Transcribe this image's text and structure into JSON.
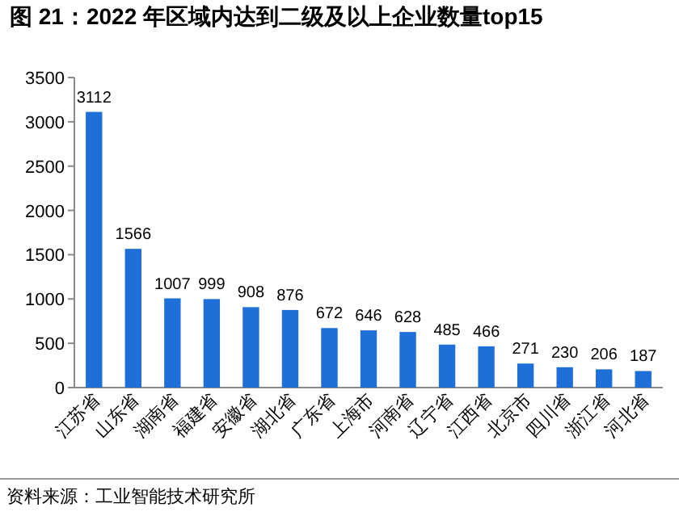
{
  "chart_data": {
    "type": "bar",
    "title": "图 21：2022 年区域内达到二级及以上企业数量top15",
    "categories": [
      "江苏省",
      "山东省",
      "湖南省",
      "福建省",
      "安徽省",
      "湖北省",
      "广东省",
      "上海市",
      "河南省",
      "辽宁省",
      "江西省",
      "北京市",
      "四川省",
      "浙江省",
      "河北省"
    ],
    "values": [
      3112,
      1566,
      1007,
      999,
      908,
      876,
      672,
      646,
      628,
      485,
      466,
      271,
      230,
      206,
      187
    ],
    "color": "#1f6fd8",
    "ylim": [
      0,
      3500
    ],
    "yticks": [
      0,
      500,
      1000,
      1500,
      2000,
      2500,
      3000,
      3500
    ],
    "data_labels": true,
    "annotations": [
      "资料来源：工业智能技术研究所"
    ]
  }
}
